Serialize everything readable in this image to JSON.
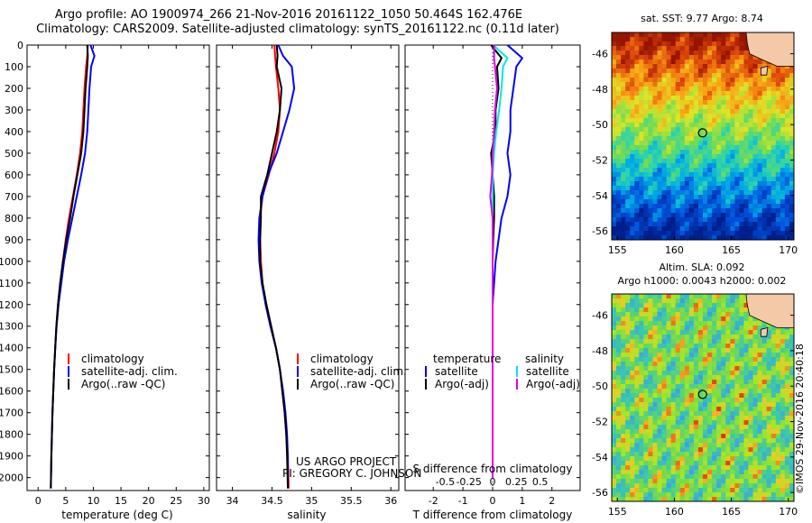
{
  "header": {
    "line1": "Argo profile: AO 1900974_266 21-Nov-2016 20161122_1050 50.464S 162.476E",
    "line2": "Climatology: CARS2009. Satellite-adjusted climatology: synTS_20161122.nc (0.11d later)"
  },
  "colors": {
    "climatology": "#ff0000",
    "satellite": "#0000ff",
    "argo": "#000000",
    "salinity_satellite": "#00e5ee",
    "salinity_argo": "#e000e0"
  },
  "chart_data": [
    {
      "type": "line",
      "id": "temperature",
      "xlabel": "temperature (deg C)",
      "ylabel": "",
      "xlim": [
        -2,
        31
      ],
      "ylim": [
        2060,
        0
      ],
      "xticks": [
        0,
        5,
        10,
        15,
        20,
        25,
        30
      ],
      "yticks": [
        0,
        100,
        200,
        300,
        400,
        500,
        600,
        700,
        800,
        900,
        1000,
        1100,
        1200,
        1300,
        1400,
        1500,
        1600,
        1700,
        1800,
        1900,
        2000
      ],
      "legend": {
        "position": "lower-right",
        "entries": [
          "climatology",
          "satellite-adj. clim.",
          "Argo(..raw -QC)"
        ]
      },
      "series": [
        {
          "name": "climatology",
          "color": "#ff0000",
          "x": [
            9.0,
            8.9,
            8.7,
            8.4,
            8.2,
            8.0,
            7.6,
            7.0,
            6.3,
            5.6,
            5.0,
            4.5,
            4.0,
            3.6,
            3.3,
            3.1,
            2.9,
            2.75,
            2.6,
            2.5,
            2.4,
            2.3
          ],
          "y": [
            0,
            50,
            100,
            200,
            300,
            400,
            500,
            600,
            700,
            800,
            900,
            1000,
            1100,
            1200,
            1300,
            1400,
            1500,
            1600,
            1700,
            1800,
            1900,
            2050
          ]
        },
        {
          "name": "satellite-adj. clim.",
          "color": "#0000ff",
          "x": [
            9.5,
            10.2,
            9.6,
            9.3,
            9.1,
            8.9,
            8.5,
            7.8,
            7.0,
            6.2,
            5.4,
            4.7,
            4.2,
            3.7,
            3.35,
            3.1,
            2.9,
            2.75,
            2.6,
            2.5,
            2.4,
            2.3
          ],
          "y": [
            0,
            50,
            100,
            200,
            300,
            400,
            500,
            600,
            700,
            800,
            900,
            1000,
            1100,
            1200,
            1300,
            1400,
            1500,
            1600,
            1700,
            1800,
            1900,
            2050
          ]
        },
        {
          "name": "Argo(..raw -QC)",
          "color": "#000000",
          "x": [
            8.9,
            9.0,
            8.9,
            8.6,
            8.4,
            8.2,
            7.8,
            7.1,
            6.4,
            5.8,
            5.1,
            4.5,
            4.0,
            3.6,
            3.3,
            3.1,
            2.9,
            2.75,
            2.6,
            2.5,
            2.4,
            2.3
          ],
          "y": [
            0,
            50,
            100,
            200,
            300,
            400,
            500,
            600,
            700,
            800,
            900,
            1000,
            1100,
            1200,
            1300,
            1400,
            1500,
            1600,
            1700,
            1800,
            1900,
            2050
          ]
        }
      ]
    },
    {
      "type": "line",
      "id": "salinity",
      "xlabel": "salinity",
      "ylabel": "",
      "xlim": [
        33.8,
        36.1
      ],
      "ylim": [
        2060,
        0
      ],
      "xticks": [
        34,
        34.5,
        35,
        35.5,
        36
      ],
      "legend": {
        "position": "lower-right",
        "entries": [
          "climatology",
          "satellite-adj. clim.",
          "Argo(..raw -QC)"
        ]
      },
      "annotation_lines": [
        "US ARGO PROJECT",
        "PI: GREGORY C. JOHNSON"
      ],
      "series": [
        {
          "name": "climatology",
          "color": "#ff0000",
          "x": [
            34.53,
            34.54,
            34.55,
            34.58,
            34.6,
            34.58,
            34.53,
            34.46,
            34.38,
            34.35,
            34.35,
            34.36,
            34.38,
            34.42,
            34.48,
            34.55,
            34.6,
            34.63,
            34.66,
            34.68,
            34.7,
            34.71
          ],
          "y": [
            0,
            50,
            100,
            200,
            300,
            400,
            500,
            600,
            700,
            800,
            900,
            1000,
            1100,
            1200,
            1300,
            1400,
            1500,
            1600,
            1700,
            1800,
            1900,
            2050
          ]
        },
        {
          "name": "satellite-adj. clim.",
          "color": "#0000ff",
          "x": [
            34.58,
            34.64,
            34.75,
            34.78,
            34.72,
            34.64,
            34.56,
            34.45,
            34.38,
            34.34,
            34.33,
            34.34,
            34.37,
            34.42,
            34.48,
            34.55,
            34.6,
            34.64,
            34.67,
            34.69,
            34.7,
            34.7
          ],
          "y": [
            0,
            50,
            100,
            200,
            300,
            400,
            500,
            600,
            700,
            800,
            900,
            1000,
            1100,
            1200,
            1300,
            1400,
            1500,
            1600,
            1700,
            1800,
            1900,
            2050
          ]
        },
        {
          "name": "Argo(..raw -QC)",
          "color": "#000000",
          "x": [
            34.56,
            34.57,
            34.56,
            34.62,
            34.6,
            34.56,
            34.5,
            34.44,
            34.36,
            34.36,
            34.35,
            34.35,
            34.38,
            34.43,
            34.49,
            34.55,
            34.6,
            34.63,
            34.66,
            34.68,
            34.69,
            34.7
          ],
          "y": [
            0,
            50,
            100,
            200,
            300,
            400,
            500,
            600,
            700,
            800,
            900,
            1000,
            1100,
            1200,
            1300,
            1400,
            1500,
            1600,
            1700,
            1800,
            1900,
            2050
          ]
        }
      ]
    },
    {
      "type": "line",
      "id": "difference",
      "xlabel_bottom": "T difference from climatology",
      "xlabel_top": "S difference from climatology",
      "xlim": [
        -2.95,
        2.95
      ],
      "ylim": [
        2060,
        0
      ],
      "xticks_T": [
        -2,
        -1,
        0,
        1,
        2
      ],
      "xticks_S": [
        -0.5,
        -0.25,
        0,
        0.25,
        0.5
      ],
      "legend": {
        "position": "lower-center",
        "temperature_header": "temperature",
        "salinity_header": "salinity",
        "entries": [
          "satellite",
          "Argo(-adj)",
          "satellite",
          "Argo(-adj)"
        ]
      },
      "series": [
        {
          "name": "temperature satellite",
          "color": "#0000ff",
          "x": [
            0.5,
            1.0,
            0.8,
            0.7,
            0.6,
            0.6,
            0.5,
            0.6,
            0.5,
            0.3,
            0.2,
            0.1,
            0.05,
            0.0,
            0.0,
            0.0,
            0.0,
            0.0,
            0.0,
            0.0,
            0.0
          ],
          "y": [
            0,
            60,
            100,
            200,
            300,
            400,
            500,
            600,
            700,
            800,
            900,
            1000,
            1100,
            1200,
            1300,
            1400,
            1500,
            1600,
            1700,
            1800,
            2000
          ]
        },
        {
          "name": "temperature Argo(-adj)",
          "color": "#000000",
          "x": [
            -0.05,
            0.3,
            0.15,
            0.2,
            0.1,
            0.1,
            -0.05,
            0.0,
            0.05,
            0.05,
            0.02,
            0.0,
            0.0,
            0.0,
            0.0,
            0.0,
            0.0,
            0.0,
            0.0,
            0.0,
            0.0
          ],
          "y": [
            0,
            60,
            100,
            200,
            300,
            400,
            500,
            600,
            700,
            800,
            900,
            1000,
            1100,
            1200,
            1300,
            1400,
            1500,
            1600,
            1700,
            1800,
            2000
          ]
        },
        {
          "name": "salinity satellite",
          "color": "#00e5ee",
          "x": [
            0.02,
            0.5,
            0.35,
            0.3,
            0.22,
            0.12,
            0.05,
            0.0,
            0.0,
            0.0,
            0.0,
            0.0,
            0.0,
            0.0,
            0.0,
            0.0,
            0.0,
            0.0,
            0.0,
            0.0,
            0.0
          ],
          "y": [
            0,
            60,
            100,
            200,
            300,
            400,
            500,
            600,
            700,
            800,
            900,
            1000,
            1100,
            1200,
            1300,
            1400,
            1500,
            1600,
            1700,
            1800,
            2000
          ]
        },
        {
          "name": "salinity Argo(-adj)",
          "color": "#e000e0",
          "x": [
            0.05,
            0.05,
            0.08,
            0.15,
            0.08,
            0.05,
            0.0,
            -0.02,
            -0.08,
            0.0,
            0.0,
            0.0,
            0.0,
            0.0,
            0.0,
            0.0,
            0.0,
            0.0,
            0.0,
            0.0,
            0.0
          ],
          "y": [
            0,
            60,
            100,
            200,
            300,
            400,
            500,
            600,
            700,
            800,
            900,
            1000,
            1100,
            1200,
            1300,
            1400,
            1500,
            1600,
            1700,
            1800,
            2000
          ]
        }
      ]
    },
    {
      "type": "heatmap",
      "id": "sst-map",
      "title": "sat. SST: 9.77 Argo: 8.74",
      "xlim": [
        154.5,
        170.5
      ],
      "ylim": [
        -56.5,
        -44.8
      ],
      "xticks": [
        155,
        160,
        165,
        170
      ],
      "yticks": [
        -46,
        -48,
        -50,
        -52,
        -54,
        -56
      ],
      "float_position": {
        "lon": 162.476,
        "lat": -50.464
      }
    },
    {
      "type": "heatmap",
      "id": "sla-map",
      "title_lines": [
        "Altim. SLA: 0.092",
        "Argo h1000: 0.0043 h2000: 0.002"
      ],
      "xlim": [
        154.5,
        170.5
      ],
      "ylim": [
        -56.5,
        -44.8
      ],
      "xticks": [
        155,
        160,
        165,
        170
      ],
      "yticks": [
        -46,
        -48,
        -50,
        -52,
        -54,
        -56
      ],
      "float_position": {
        "lon": 162.476,
        "lat": -50.464
      }
    }
  ],
  "credit": "©IMOS 29-Nov-2016 20:40:18"
}
